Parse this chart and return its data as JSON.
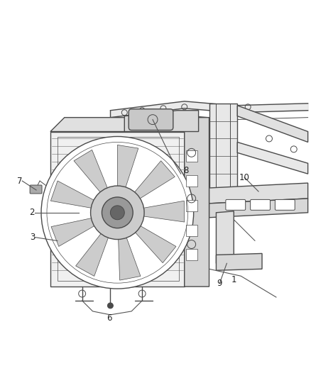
{
  "background_color": "#ffffff",
  "figure_width": 4.38,
  "figure_height": 5.33,
  "dpi": 100,
  "line_color": "#4a4a4a",
  "label_color": "#222222",
  "label_fontsize": 8.5,
  "shade_color": "#c8c8c8",
  "dark_shade": "#999999"
}
